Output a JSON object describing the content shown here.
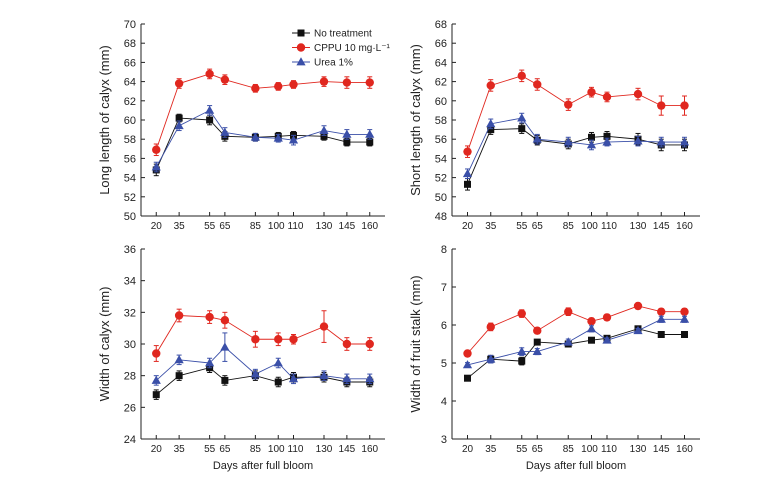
{
  "chart_data": [
    {
      "type": "line",
      "panel": "top-left",
      "title": "",
      "xlabel": "",
      "ylabel": "Long length of calyx (mm)",
      "x": [
        20,
        35,
        55,
        65,
        85,
        100,
        110,
        130,
        145,
        160
      ],
      "xtick_labels": [
        "20",
        "35",
        "55",
        "65",
        "85",
        "100",
        "110",
        "130",
        "145",
        "160"
      ],
      "ylim": [
        50,
        70
      ],
      "yticks": [
        50,
        52,
        54,
        56,
        58,
        60,
        62,
        64,
        66,
        68,
        70
      ],
      "series": [
        {
          "name": "No treatment",
          "color": "#111111",
          "marker": "square",
          "values": [
            54.8,
            60.2,
            60.0,
            58.3,
            58.2,
            58.3,
            58.4,
            58.3,
            57.7,
            57.7
          ],
          "errors": [
            0.6,
            0.4,
            0.5,
            0.5,
            0.4,
            0.4,
            0.4,
            0.4,
            0.4,
            0.4
          ]
        },
        {
          "name": "CPPU 10 mg·L⁻¹",
          "color": "#e0271f",
          "marker": "circle",
          "values": [
            56.9,
            63.8,
            64.8,
            64.2,
            63.3,
            63.5,
            63.7,
            64.0,
            63.9,
            63.9
          ],
          "errors": [
            0.6,
            0.5,
            0.5,
            0.5,
            0.4,
            0.4,
            0.4,
            0.5,
            0.6,
            0.6
          ]
        },
        {
          "name": "Urea 1%",
          "color": "#3a4fa8",
          "marker": "triangle",
          "values": [
            55.1,
            59.4,
            61.0,
            58.7,
            58.2,
            58.1,
            57.9,
            58.9,
            58.5,
            58.5
          ],
          "errors": [
            0.5,
            0.5,
            0.5,
            0.5,
            0.4,
            0.4,
            0.5,
            0.5,
            0.5,
            0.5
          ]
        }
      ],
      "legend": {
        "location": "top-center",
        "entries": [
          "No treatment",
          "CPPU 10 mg·L⁻¹",
          "Urea 1%"
        ]
      }
    },
    {
      "type": "line",
      "panel": "top-right",
      "title": "",
      "xlabel": "",
      "ylabel": "Short length of calyx (mm)",
      "x": [
        20,
        35,
        55,
        65,
        85,
        100,
        110,
        130,
        145,
        160
      ],
      "xtick_labels": [
        "20",
        "35",
        "55",
        "65",
        "85",
        "100",
        "110",
        "130",
        "145",
        "160"
      ],
      "ylim": [
        48,
        68
      ],
      "yticks": [
        48,
        50,
        52,
        54,
        56,
        58,
        60,
        62,
        64,
        66,
        68
      ],
      "series": [
        {
          "name": "No treatment",
          "color": "#111111",
          "marker": "square",
          "values": [
            51.3,
            57.0,
            57.1,
            55.9,
            55.5,
            56.2,
            56.3,
            56.0,
            55.4,
            55.4
          ],
          "errors": [
            0.6,
            0.5,
            0.5,
            0.5,
            0.5,
            0.5,
            0.5,
            0.6,
            0.6,
            0.6
          ]
        },
        {
          "name": "CPPU 10 mg·L⁻¹",
          "color": "#e0271f",
          "marker": "circle",
          "values": [
            54.7,
            61.6,
            62.6,
            61.7,
            59.6,
            60.9,
            60.4,
            60.7,
            59.5,
            59.5
          ],
          "errors": [
            0.6,
            0.6,
            0.6,
            0.6,
            0.6,
            0.5,
            0.5,
            0.6,
            1.0,
            1.0
          ]
        },
        {
          "name": "Urea 1%",
          "color": "#3a4fa8",
          "marker": "triangle",
          "values": [
            52.4,
            57.6,
            58.2,
            56.0,
            55.7,
            55.4,
            55.7,
            55.8,
            55.7,
            55.7
          ],
          "errors": [
            0.5,
            0.5,
            0.5,
            0.5,
            0.5,
            0.5,
            0.4,
            0.5,
            0.5,
            0.5
          ]
        }
      ]
    },
    {
      "type": "line",
      "panel": "bottom-left",
      "title": "",
      "xlabel": "Days after full bloom",
      "ylabel": "Width of calyx (mm)",
      "x": [
        20,
        35,
        55,
        65,
        85,
        100,
        110,
        130,
        145,
        160
      ],
      "xtick_labels": [
        "20",
        "35",
        "55",
        "65",
        "85",
        "100",
        "110",
        "130",
        "145",
        "160"
      ],
      "ylim": [
        24,
        36
      ],
      "yticks": [
        24,
        26,
        28,
        30,
        32,
        34,
        36
      ],
      "series": [
        {
          "name": "No treatment",
          "color": "#111111",
          "marker": "square",
          "values": [
            26.8,
            28.0,
            28.5,
            27.7,
            28.0,
            27.6,
            27.9,
            27.9,
            27.6,
            27.6
          ],
          "errors": [
            0.3,
            0.3,
            0.3,
            0.3,
            0.3,
            0.3,
            0.3,
            0.3,
            0.3,
            0.3
          ]
        },
        {
          "name": "CPPU 10 mg·L⁻¹",
          "color": "#e0271f",
          "marker": "circle",
          "values": [
            29.4,
            31.8,
            31.7,
            31.5,
            30.3,
            30.3,
            30.3,
            31.1,
            30.0,
            30.0
          ],
          "errors": [
            0.5,
            0.4,
            0.4,
            0.5,
            0.5,
            0.4,
            0.3,
            1.0,
            0.4,
            0.4
          ]
        },
        {
          "name": "Urea 1%",
          "color": "#3a4fa8",
          "marker": "triangle",
          "values": [
            27.7,
            29.0,
            28.8,
            29.8,
            28.1,
            28.8,
            27.8,
            28.0,
            27.8,
            27.8
          ],
          "errors": [
            0.3,
            0.3,
            0.3,
            0.9,
            0.3,
            0.3,
            0.3,
            0.3,
            0.3,
            0.3
          ]
        }
      ]
    },
    {
      "type": "line",
      "panel": "bottom-right",
      "title": "",
      "xlabel": "Days after full bloom",
      "ylabel": "Width of fruit stalk (mm)",
      "x": [
        20,
        35,
        55,
        65,
        85,
        100,
        110,
        130,
        145,
        160
      ],
      "xtick_labels": [
        "20",
        "35",
        "55",
        "65",
        "85",
        "100",
        "110",
        "130",
        "145",
        "160"
      ],
      "ylim": [
        3,
        8
      ],
      "yticks": [
        3,
        4,
        5,
        6,
        7,
        8
      ],
      "series": [
        {
          "name": "No treatment",
          "color": "#111111",
          "marker": "square",
          "values": [
            4.6,
            5.1,
            5.05,
            5.55,
            5.5,
            5.6,
            5.65,
            5.9,
            5.75,
            5.75
          ],
          "errors": [
            0.06,
            0.1,
            0.1,
            0.06,
            0.06,
            0.06,
            0.06,
            0.06,
            0.06,
            0.06
          ]
        },
        {
          "name": "CPPU 10 mg·L⁻¹",
          "color": "#e0271f",
          "marker": "circle",
          "values": [
            5.25,
            5.95,
            6.3,
            5.85,
            6.35,
            6.1,
            6.2,
            6.5,
            6.35,
            6.35
          ],
          "errors": [
            0.08,
            0.1,
            0.1,
            0.08,
            0.1,
            0.08,
            0.08,
            0.08,
            0.08,
            0.08
          ]
        },
        {
          "name": "Urea 1%",
          "color": "#3a4fa8",
          "marker": "triangle",
          "values": [
            4.95,
            5.1,
            5.3,
            5.3,
            5.55,
            5.9,
            5.6,
            5.85,
            6.15,
            6.15
          ],
          "errors": [
            0.06,
            0.1,
            0.1,
            0.08,
            0.08,
            0.08,
            0.06,
            0.06,
            0.08,
            0.08
          ]
        }
      ]
    }
  ]
}
